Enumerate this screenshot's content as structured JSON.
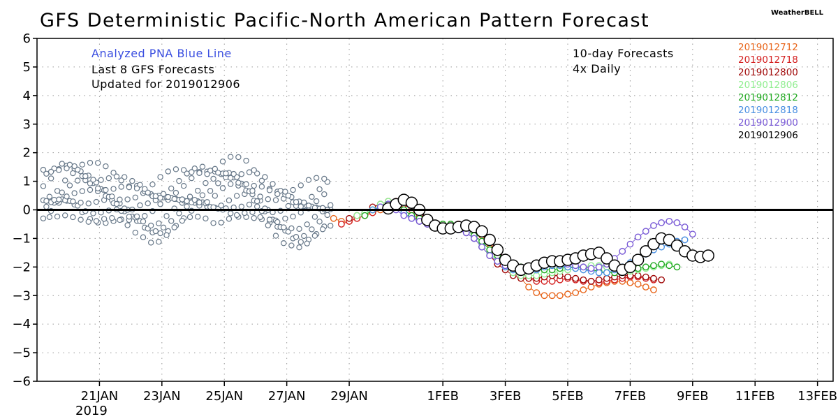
{
  "chart_data": {
    "type": "line",
    "title": "GFS Deterministic Pacific-North American Pattern Forecast",
    "brand": "WeatherBELL",
    "ylim": [
      -6,
      6
    ],
    "y_ticks": [
      "6",
      "5",
      "4",
      "3",
      "2",
      "1",
      "0",
      "-1",
      "-2",
      "-3",
      "-4",
      "-5",
      "-6"
    ],
    "x_ticks": [
      "21JAN",
      "23JAN",
      "25JAN",
      "27JAN",
      "29JAN",
      "1FEB",
      "3FEB",
      "5FEB",
      "7FEB",
      "9FEB",
      "11FEB",
      "13FEB"
    ],
    "x_year": "2019",
    "grid": true,
    "annotations": {
      "analyzed": "Analyzed PNA Blue Line",
      "last": "Last 8 GFS Forecasts",
      "updated": "Updated for 2019012906",
      "forecast_range": "10-day Forecasts",
      "frequency": "4x Daily"
    },
    "legend_position": "top-right",
    "series": [
      {
        "name": "2019012712",
        "color": "#e8651a",
        "start_day": 9.5,
        "values": [
          -0.3,
          -0.4,
          -0.4,
          -0.3,
          -0.2,
          -0.1,
          0.0,
          0.1,
          0.2,
          0.3,
          0.2,
          0.0,
          -0.3,
          -0.5,
          -0.6,
          -0.6,
          -0.5,
          -0.5,
          -0.6,
          -0.9,
          -1.2,
          -1.5,
          -1.8,
          -2.1,
          -2.4,
          -2.7,
          -2.9,
          -3.0,
          -3.0,
          -3.0,
          -2.95,
          -2.9,
          -2.8,
          -2.7,
          -2.6,
          -2.55,
          -2.5,
          -2.5,
          -2.55,
          -2.6,
          -2.7,
          -2.8
        ]
      },
      {
        "name": "2019012718",
        "color": "#d42020",
        "start_day": 9.75,
        "values": [
          -0.5,
          -0.4,
          -0.3,
          -0.2,
          -0.1,
          0.1,
          0.2,
          0.3,
          0.2,
          0.0,
          -0.2,
          -0.4,
          -0.5,
          -0.6,
          -0.6,
          -0.5,
          -0.5,
          -0.6,
          -0.8,
          -1.1,
          -1.4,
          -1.7,
          -2.0,
          -2.2,
          -2.4,
          -2.5,
          -2.5,
          -2.5,
          -2.45,
          -2.4,
          -2.45,
          -2.5,
          -2.5,
          -2.55,
          -2.5,
          -2.45,
          -2.4,
          -2.35,
          -2.35,
          -2.4,
          -2.45
        ]
      },
      {
        "name": "2019012800",
        "color": "#a00808",
        "start_day": 10.0,
        "values": [
          -0.3,
          -0.2,
          -0.1,
          0.1,
          0.2,
          0.3,
          0.2,
          0.0,
          -0.2,
          -0.4,
          -0.5,
          -0.5,
          -0.5,
          -0.5,
          -0.6,
          -0.8,
          -1.0,
          -1.3,
          -1.6,
          -1.9,
          -2.1,
          -2.3,
          -2.4,
          -2.4,
          -2.4,
          -2.35,
          -2.3,
          -2.3,
          -2.35,
          -2.4,
          -2.45,
          -2.5,
          -2.45,
          -2.4,
          -2.35,
          -2.3,
          -2.3,
          -2.3,
          -2.35,
          -2.4,
          -2.45
        ]
      },
      {
        "name": "2019012806",
        "color": "#90ee90",
        "start_day": 10.25,
        "values": [
          -0.2,
          -0.1,
          0.0,
          0.2,
          0.3,
          0.2,
          0.0,
          -0.2,
          -0.3,
          -0.4,
          -0.5,
          -0.5,
          -0.5,
          -0.6,
          -0.7,
          -0.9,
          -1.2,
          -1.5,
          -1.8,
          -2.0,
          -2.2,
          -2.3,
          -2.3,
          -2.3,
          -2.25,
          -2.2,
          -2.15,
          -2.1,
          -2.05,
          -2.0,
          -1.95,
          -1.95,
          -2.0,
          -2.05,
          -2.1,
          -2.15,
          -2.1,
          -2.05,
          -2.0,
          -1.95,
          -1.9
        ]
      },
      {
        "name": "2019012812",
        "color": "#22aa22",
        "start_day": 10.5,
        "values": [
          -0.2,
          0.0,
          0.1,
          0.2,
          0.2,
          0.0,
          -0.2,
          -0.3,
          -0.4,
          -0.5,
          -0.5,
          -0.5,
          -0.6,
          -0.7,
          -0.9,
          -1.1,
          -1.4,
          -1.6,
          -1.8,
          -1.95,
          -2.0,
          -2.05,
          -2.1,
          -2.1,
          -2.1,
          -2.05,
          -2.0,
          -2.0,
          -2.05,
          -2.1,
          -2.15,
          -2.2,
          -2.2,
          -2.15,
          -2.1,
          -2.05,
          -2.0,
          -1.95,
          -1.9,
          -1.95,
          -2.0
        ]
      },
      {
        "name": "2019012818",
        "color": "#4a90e2",
        "start_day": 10.75,
        "values": [
          0.0,
          0.1,
          0.2,
          0.1,
          -0.1,
          -0.3,
          -0.4,
          -0.5,
          -0.5,
          -0.6,
          -0.6,
          -0.7,
          -0.8,
          -1.0,
          -1.3,
          -1.6,
          -1.8,
          -2.0,
          -2.1,
          -2.15,
          -2.15,
          -2.1,
          -2.0,
          -1.95,
          -1.95,
          -2.0,
          -2.05,
          -2.1,
          -2.15,
          -2.2,
          -2.2,
          -2.1,
          -2.0,
          -1.85,
          -1.7,
          -1.55,
          -1.4,
          -1.3,
          -1.2,
          -1.1,
          -1.05
        ]
      },
      {
        "name": "2019012900",
        "color": "#7a5bd6",
        "start_day": 11.0,
        "values": [
          0.1,
          0.2,
          0.0,
          -0.2,
          -0.3,
          -0.4,
          -0.5,
          -0.5,
          -0.6,
          -0.6,
          -0.7,
          -0.8,
          -1.0,
          -1.3,
          -1.6,
          -1.8,
          -1.95,
          -2.05,
          -2.05,
          -2.0,
          -1.95,
          -1.9,
          -1.85,
          -1.85,
          -1.9,
          -1.95,
          -2.0,
          -2.05,
          -2.0,
          -1.9,
          -1.7,
          -1.45,
          -1.2,
          -0.95,
          -0.75,
          -0.55,
          -0.45,
          -0.4,
          -0.45,
          -0.6,
          -0.85
        ]
      },
      {
        "name": "2019012906",
        "color": "#000000",
        "start_day": 11.25,
        "values": [
          0.05,
          0.2,
          0.35,
          0.25,
          0.0,
          -0.35,
          -0.55,
          -0.65,
          -0.65,
          -0.6,
          -0.55,
          -0.6,
          -0.75,
          -1.05,
          -1.4,
          -1.75,
          -1.95,
          -2.1,
          -2.05,
          -1.95,
          -1.85,
          -1.8,
          -1.8,
          -1.75,
          -1.7,
          -1.6,
          -1.55,
          -1.5,
          -1.7,
          -1.95,
          -2.1,
          -2.0,
          -1.75,
          -1.45,
          -1.2,
          -1.0,
          -1.05,
          -1.25,
          -1.45,
          -1.6,
          -1.65,
          -1.6
        ]
      }
    ],
    "analyzed_series": {
      "color": "#667788",
      "values": [
        0.3,
        0.4,
        0.6,
        0.7,
        0.7,
        0.6,
        0.5,
        0.4,
        0.3,
        0.2,
        0.1,
        0.0,
        0.0,
        -0.1,
        -0.1,
        0.0,
        0.1,
        0.2,
        0.3,
        0.4,
        0.5,
        0.5,
        0.6,
        0.7,
        0.7,
        0.6,
        0.5,
        0.3,
        0.1,
        -0.1,
        -0.2,
        -0.2,
        -0.3,
        -0.3,
        -0.2,
        -0.1,
        0.0
      ]
    },
    "x_start": "2019-01-19T00",
    "x_end": "2019-02-13T12"
  }
}
